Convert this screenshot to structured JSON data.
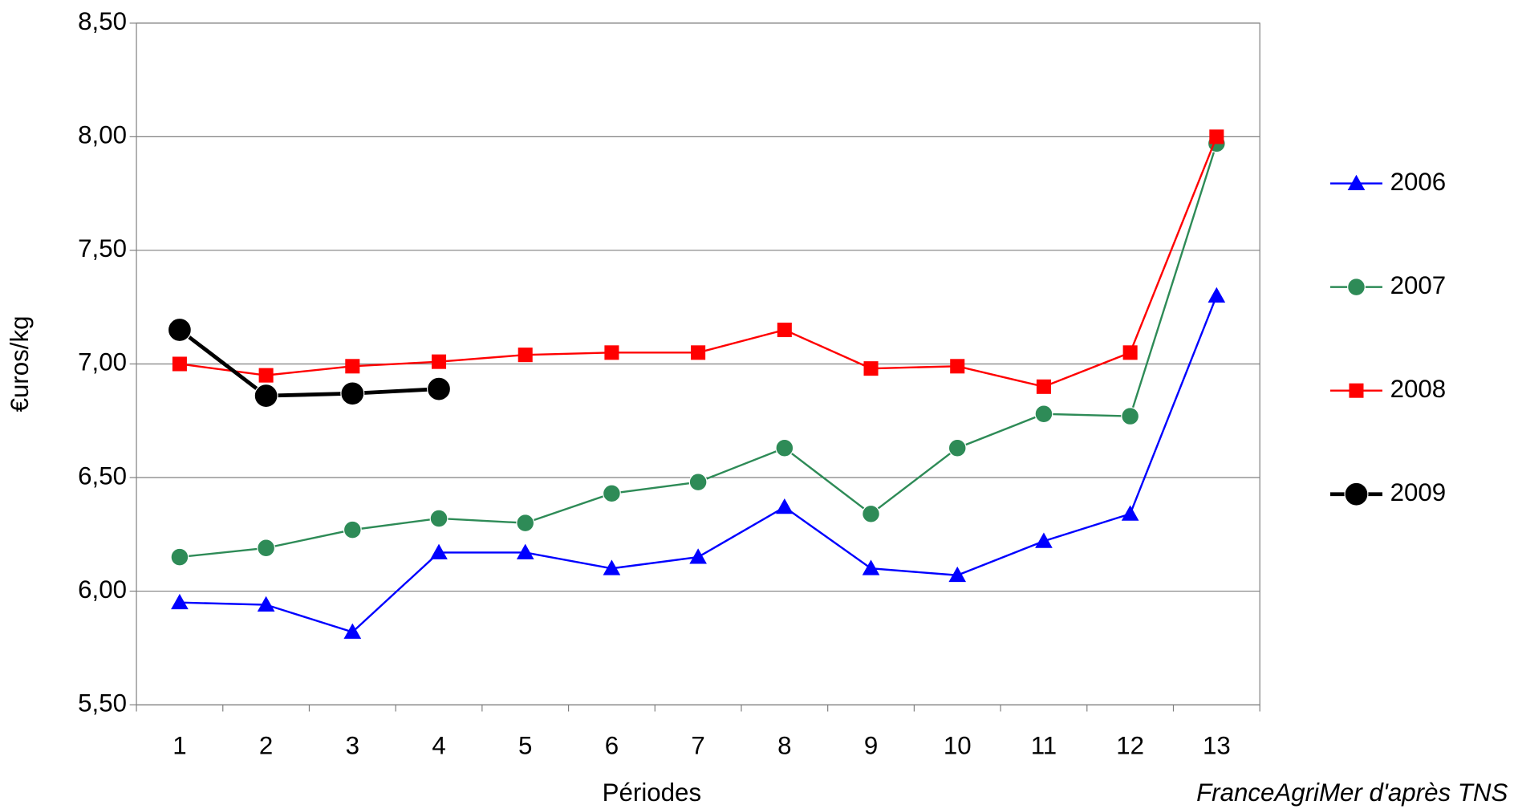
{
  "chart_data": {
    "type": "line",
    "y_label": "€uros/kg",
    "x_label": "Périodes",
    "source": "FranceAgriMer d'après TNS",
    "categories": [
      "1",
      "2",
      "3",
      "4",
      "5",
      "6",
      "7",
      "8",
      "9",
      "10",
      "11",
      "12",
      "13"
    ],
    "ylim": [
      5.5,
      8.5
    ],
    "yticks": [
      {
        "value": 5.5,
        "label": "5,50"
      },
      {
        "value": 6,
        "label": "6,00"
      },
      {
        "value": 6.5,
        "label": "6,50"
      },
      {
        "value": 7,
        "label": "7,00"
      },
      {
        "value": 7.5,
        "label": "7,50"
      },
      {
        "value": 8,
        "label": "8,00"
      },
      {
        "value": 8.5,
        "label": "8,50"
      }
    ],
    "grid": true,
    "legend": "right",
    "series": [
      {
        "name": "2006",
        "color": "#0000ff",
        "marker": "triangle",
        "line_width": 2,
        "values": [
          5.95,
          5.94,
          5.82,
          6.17,
          6.17,
          6.1,
          6.15,
          6.37,
          6.1,
          6.07,
          6.22,
          6.34,
          7.3
        ]
      },
      {
        "name": "2007",
        "color": "#2e8b57",
        "marker": "circle",
        "line_width": 2,
        "values": [
          6.15,
          6.19,
          6.27,
          6.32,
          6.3,
          6.43,
          6.48,
          6.63,
          6.34,
          6.63,
          6.78,
          6.77,
          7.97
        ]
      },
      {
        "name": "2008",
        "color": "#ff0000",
        "marker": "square",
        "line_width": 2,
        "values": [
          7.0,
          6.95,
          6.99,
          7.01,
          7.04,
          7.05,
          7.05,
          7.15,
          6.98,
          6.99,
          6.9,
          7.05,
          8.0
        ]
      },
      {
        "name": "2009",
        "color": "#000000",
        "marker": "big-circle",
        "line_width": 4,
        "values": [
          7.15,
          6.86,
          6.87,
          6.89,
          null,
          null,
          null,
          null,
          null,
          null,
          null,
          null,
          null
        ]
      }
    ]
  }
}
